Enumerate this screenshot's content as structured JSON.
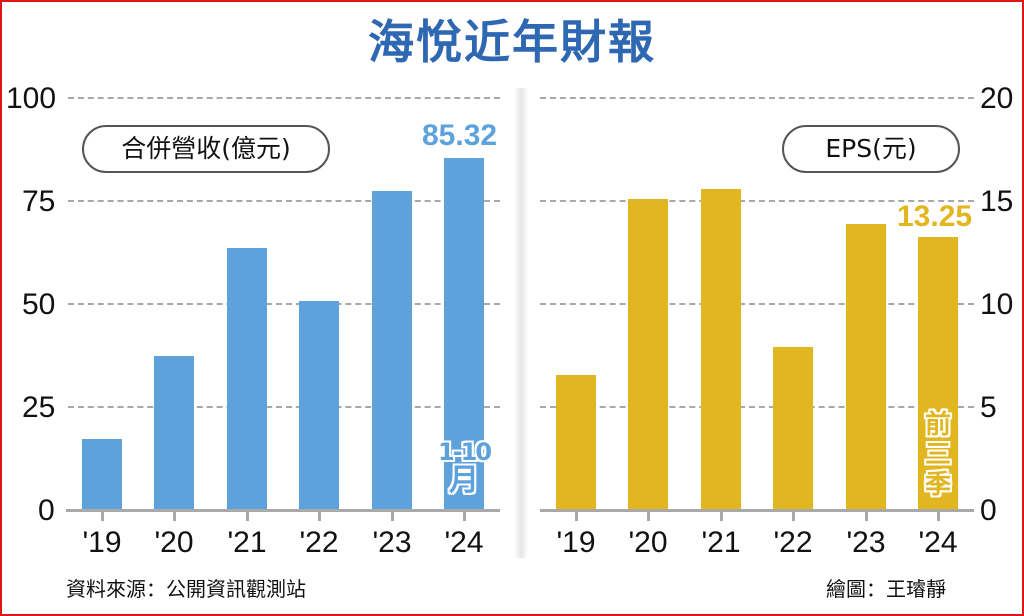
{
  "title": "海悅近年財報",
  "source": "資料來源：公開資訊觀測站",
  "credit": "繪圖：王璿靜",
  "colors": {
    "revenue": "#5ea2dc",
    "eps": "#e2b620",
    "title": "#2e67b2",
    "border": "#e01818"
  },
  "left_panel": {
    "legend": "合併營收(億元)",
    "value_label": "85.32",
    "note_line1": "1-10",
    "note_line2": "月",
    "yticks": [
      "100",
      "75",
      "50",
      "25",
      "0"
    ],
    "xticks": [
      "'19",
      "'20",
      "'21",
      "'22",
      "'23",
      "'24"
    ]
  },
  "right_panel": {
    "legend": "EPS(元)",
    "value_label": "13.25",
    "note_chars": [
      "前",
      "三",
      "季"
    ],
    "yticks": [
      "20",
      "15",
      "10",
      "5",
      "0"
    ],
    "xticks": [
      "'19",
      "'20",
      "'21",
      "'22",
      "'23",
      "'24"
    ]
  },
  "chart_data": [
    {
      "type": "bar",
      "title": "海悅近年財報 — 合併營收(億元)",
      "categories": [
        "'19",
        "'20",
        "'21",
        "'22",
        "'23",
        "'24"
      ],
      "values": [
        17.2,
        37.4,
        63.6,
        50.7,
        77.4,
        85.32
      ],
      "xlabel": "",
      "ylabel": "合併營收(億元)",
      "ylim": [
        0,
        100
      ],
      "yticks": [
        0,
        25,
        50,
        75,
        100
      ],
      "grid": true,
      "annotations": [
        {
          "category": "'24",
          "text": "85.32",
          "position": "above bar"
        },
        {
          "category": "'24",
          "text": "1-10月",
          "position": "inside bar bottom"
        }
      ],
      "color": "#5ea2dc",
      "axis_side": "left"
    },
    {
      "type": "bar",
      "title": "海悅近年財報 — EPS(元)",
      "categories": [
        "'19",
        "'20",
        "'21",
        "'22",
        "'23",
        "'24"
      ],
      "values": [
        6.55,
        15.1,
        15.6,
        7.9,
        13.9,
        13.25
      ],
      "xlabel": "",
      "ylabel": "EPS(元)",
      "ylim": [
        0,
        20
      ],
      "yticks": [
        0,
        5,
        10,
        15,
        20
      ],
      "grid": true,
      "annotations": [
        {
          "category": "'24",
          "text": "13.25",
          "position": "above bar"
        },
        {
          "category": "'24",
          "text": "前三季",
          "position": "inside bar bottom"
        }
      ],
      "color": "#e2b620",
      "axis_side": "right"
    }
  ]
}
